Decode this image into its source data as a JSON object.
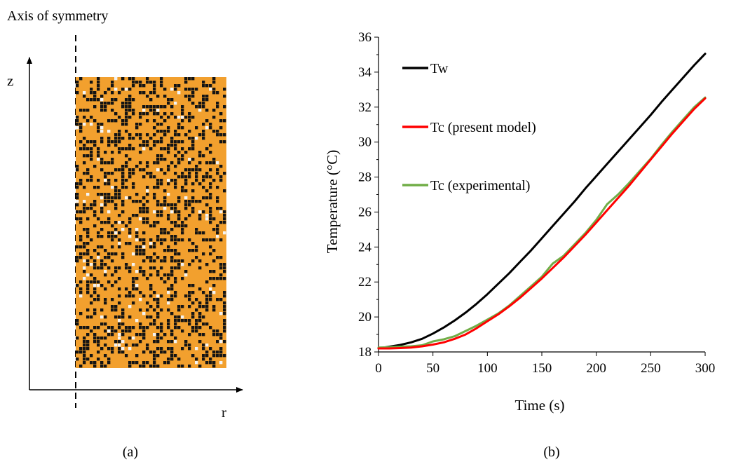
{
  "panel_a": {
    "axis_label": "Axis of symmetry",
    "z_label": "z",
    "r_label": "r",
    "caption": "(a)",
    "colors": {
      "matrix": "#f2a02e",
      "dark_cell": "#141414",
      "light_cell": "#f4f4f4"
    },
    "fractions": {
      "dark": 0.33,
      "light": 0.035
    }
  },
  "panel_b": {
    "caption": "(b)",
    "chart_data": {
      "type": "line",
      "xlabel": "Time (s)",
      "ylabel": "Temperature (°C)",
      "xlim": [
        0,
        300
      ],
      "ylim": [
        18,
        36
      ],
      "xticks": [
        0,
        50,
        100,
        150,
        200,
        250,
        300
      ],
      "yticks": [
        18,
        20,
        22,
        24,
        26,
        28,
        30,
        32,
        34,
        36
      ],
      "grid": false,
      "legend_position": "upper-left",
      "series": [
        {
          "name": "Tw",
          "color": "#000000",
          "x": [
            0,
            10,
            20,
            30,
            40,
            50,
            60,
            70,
            80,
            90,
            100,
            110,
            120,
            130,
            140,
            150,
            160,
            170,
            180,
            190,
            200,
            210,
            220,
            230,
            240,
            250,
            260,
            270,
            280,
            290,
            300
          ],
          "y": [
            18.2,
            18.3,
            18.4,
            18.55,
            18.75,
            19.05,
            19.4,
            19.8,
            20.25,
            20.75,
            21.3,
            21.9,
            22.5,
            23.15,
            23.8,
            24.5,
            25.2,
            25.9,
            26.6,
            27.35,
            28.05,
            28.75,
            29.45,
            30.15,
            30.85,
            31.55,
            32.3,
            33.0,
            33.7,
            34.4,
            35.05
          ]
        },
        {
          "name": "Tc (present model)",
          "color": "#ff0000",
          "x": [
            0,
            10,
            20,
            30,
            40,
            50,
            60,
            70,
            80,
            90,
            100,
            110,
            120,
            130,
            140,
            150,
            160,
            170,
            180,
            190,
            200,
            210,
            220,
            230,
            240,
            250,
            260,
            270,
            280,
            290,
            300
          ],
          "y": [
            18.2,
            18.2,
            18.22,
            18.25,
            18.32,
            18.42,
            18.55,
            18.75,
            19.0,
            19.35,
            19.75,
            20.15,
            20.6,
            21.1,
            21.65,
            22.2,
            22.8,
            23.4,
            24.05,
            24.7,
            25.4,
            26.1,
            26.8,
            27.5,
            28.25,
            29.0,
            29.75,
            30.5,
            31.2,
            31.9,
            32.5
          ]
        },
        {
          "name": "Tc (experimental)",
          "color": "#70ad47",
          "x": [
            0,
            10,
            20,
            30,
            40,
            50,
            60,
            70,
            80,
            90,
            100,
            110,
            120,
            130,
            140,
            150,
            160,
            170,
            180,
            190,
            200,
            210,
            220,
            230,
            240,
            250,
            260,
            270,
            280,
            290,
            300
          ],
          "y": [
            18.25,
            18.27,
            18.3,
            18.32,
            18.38,
            18.6,
            18.72,
            18.9,
            19.2,
            19.5,
            19.85,
            20.2,
            20.65,
            21.2,
            21.75,
            22.3,
            23.05,
            23.5,
            24.15,
            24.8,
            25.55,
            26.45,
            27.0,
            27.65,
            28.35,
            29.05,
            29.85,
            30.6,
            31.3,
            32.0,
            32.55
          ]
        }
      ]
    }
  }
}
